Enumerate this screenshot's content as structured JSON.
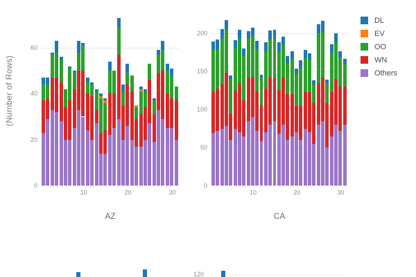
{
  "ylabel": "(Number of Rows)",
  "legend": {
    "items": [
      {
        "label": "DL",
        "color": "#1f77b4"
      },
      {
        "label": "EV",
        "color": "#ff7f0e"
      },
      {
        "label": "OO",
        "color": "#2ca02c"
      },
      {
        "label": "WN",
        "color": "#d62728"
      },
      {
        "label": "Others",
        "color": "#9b75c8"
      }
    ]
  },
  "chart_data": {
    "type": "bar",
    "stacked": true,
    "ylabel": "(Number of Rows)",
    "legend_position": "top-right",
    "grid": true,
    "facets": [
      {
        "label": "AZ",
        "x": [
          1,
          2,
          3,
          4,
          5,
          6,
          7,
          8,
          9,
          10,
          11,
          12,
          13,
          14,
          15,
          16,
          17,
          18,
          19,
          20,
          21,
          22,
          23,
          24,
          25,
          26,
          27,
          28,
          29,
          30,
          31
        ],
        "x_ticks": [
          10,
          20,
          30
        ],
        "y_ticks": [
          0,
          20,
          40,
          60
        ],
        "ylim": [
          0,
          75
        ],
        "series": [
          {
            "name": "Others",
            "color": "#9b75c8",
            "values": [
              23,
              29,
              33,
              32,
              28,
              20,
              20,
              25,
              33,
              30,
              24,
              20,
              27,
              14,
              14,
              22,
              25,
              29,
              20,
              26,
              20,
              17,
              17,
              20,
              27,
              19,
              33,
              29,
              25,
              25,
              20
            ]
          },
          {
            "name": "WN",
            "color": "#d62728",
            "values": [
              14,
              9,
              14,
              15,
              17,
              14,
              17,
              17,
              17,
              20,
              16,
              19,
              6,
              9,
              10,
              18,
              15,
              28,
              15,
              18,
              21,
              12,
              14,
              14,
              19,
              12,
              16,
              21,
              15,
              13,
              17
            ]
          },
          {
            "name": "OO",
            "color": "#2ca02c",
            "values": [
              7,
              6,
              10,
              11,
              10,
              8,
              14,
              7,
              8,
              11,
              5,
              5,
              8,
              15,
              12,
              10,
              10,
              12,
              6,
              5,
              7,
              5,
              10,
              7,
              7,
              6,
              8,
              9,
              10,
              10,
              6
            ]
          },
          {
            "name": "EV",
            "color": "#ff7f0e",
            "values": [
              0,
              0,
              0,
              0,
              0,
              0,
              0,
              0,
              0,
              0,
              0,
              0,
              0,
              1,
              1,
              0,
              0,
              0,
              0,
              0,
              0,
              1,
              1,
              0,
              0,
              0,
              0,
              0,
              0,
              0,
              0
            ]
          },
          {
            "name": "DL",
            "color": "#1f77b4",
            "values": [
              3,
              3,
              1,
              5,
              1,
              0,
              1,
              1,
              5,
              1,
              2,
              1,
              1,
              1,
              1,
              4,
              0,
              4,
              3,
              4,
              0,
              0,
              1,
              1,
              0,
              1,
              2,
              4,
              3,
              3,
              0
            ]
          }
        ]
      },
      {
        "label": "CA",
        "x": [
          1,
          2,
          3,
          4,
          5,
          6,
          7,
          8,
          9,
          10,
          11,
          12,
          13,
          14,
          15,
          16,
          17,
          18,
          19,
          20,
          21,
          22,
          23,
          24,
          25,
          26,
          27,
          28,
          29,
          30,
          31
        ],
        "x_ticks": [
          10,
          20,
          30
        ],
        "y_ticks": [
          0,
          50,
          100,
          150,
          200
        ],
        "ylim": [
          0,
          225
        ],
        "series": [
          {
            "name": "Others",
            "color": "#9b75c8",
            "values": [
              69,
              72,
              75,
              78,
              60,
              75,
              70,
              65,
              85,
              90,
              72,
              58,
              70,
              80,
              85,
              68,
              80,
              60,
              65,
              70,
              60,
              75,
              70,
              55,
              80,
              85,
              50,
              65,
              80,
              72,
              80
            ]
          },
          {
            "name": "WN",
            "color": "#d62728",
            "values": [
              55,
              55,
              58,
              70,
              35,
              50,
              65,
              47,
              57,
              52,
              52,
              48,
              57,
              62,
              57,
              58,
              62,
              60,
              55,
              35,
              45,
              48,
              53,
              53,
              55,
              57,
              58,
              58,
              60,
              58,
              50
            ]
          },
          {
            "name": "OO",
            "color": "#2ca02c",
            "values": [
              54,
              52,
              60,
              58,
              45,
              55,
              58,
              58,
              52,
              55,
              55,
              35,
              50,
              50,
              51,
              51,
              44,
              40,
              47,
              42,
              50,
              45,
              43,
              25,
              65,
              60,
              27,
              52,
              48,
              38,
              30
            ]
          },
          {
            "name": "EV",
            "color": "#ff7f0e",
            "values": [
              0,
              0,
              0,
              0,
              0,
              0,
              0,
              0,
              0,
              0,
              0,
              0,
              0,
              0,
              0,
              0,
              0,
              0,
              0,
              0,
              0,
              0,
              0,
              0,
              0,
              0,
              0,
              0,
              0,
              0,
              0
            ]
          },
          {
            "name": "DL",
            "color": "#1f77b4",
            "values": [
              11,
              13,
              13,
              12,
              5,
              11,
              12,
              10,
              9,
              11,
              11,
              5,
              11,
              12,
              12,
              11,
              10,
              10,
              10,
              7,
              10,
              10,
              8,
              5,
              12,
              15,
              4,
              11,
              12,
              9,
              7
            ]
          }
        ]
      }
    ],
    "partial_next_row": {
      "y_tick_label": "120",
      "note": "tops of a second facet row cut off at bottom edge",
      "visible_bar_color": "#1f77b4"
    }
  }
}
